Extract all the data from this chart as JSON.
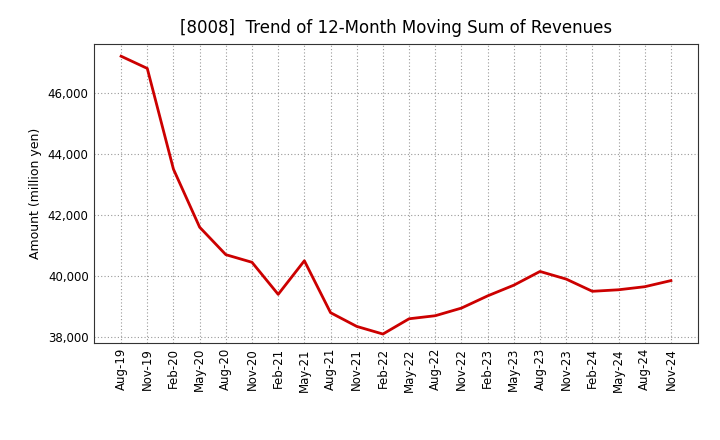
{
  "title": "[8008]  Trend of 12-Month Moving Sum of Revenues",
  "ylabel": "Amount (million yen)",
  "line_color": "#cc0000",
  "background_color": "#ffffff",
  "grid_color": "#999999",
  "ylim": [
    37800,
    47600
  ],
  "yticks": [
    38000,
    40000,
    42000,
    44000,
    46000
  ],
  "x_labels": [
    "Aug-19",
    "Nov-19",
    "Feb-20",
    "May-20",
    "Aug-20",
    "Nov-20",
    "Feb-21",
    "May-21",
    "Aug-21",
    "Nov-21",
    "Feb-22",
    "May-22",
    "Aug-22",
    "Nov-22",
    "Feb-23",
    "May-23",
    "Aug-23",
    "Nov-23",
    "Feb-24",
    "May-24",
    "Aug-24",
    "Nov-24"
  ],
  "data_points": {
    "Aug-19": 47200,
    "Nov-19": 46800,
    "Feb-20": 43500,
    "May-20": 41600,
    "Aug-20": 40700,
    "Nov-20": 40450,
    "Feb-21": 39400,
    "May-21": 40500,
    "Aug-21": 38800,
    "Nov-21": 38350,
    "Feb-22": 38100,
    "May-22": 38600,
    "Aug-22": 38700,
    "Nov-22": 38950,
    "Feb-23": 39350,
    "May-23": 39700,
    "Aug-23": 40150,
    "Nov-23": 39900,
    "Feb-24": 39500,
    "May-24": 39550,
    "Aug-24": 39650,
    "Nov-24": 39850
  },
  "spine_color": "#333333",
  "linewidth": 2.0,
  "title_fontsize": 12,
  "axis_fontsize": 9,
  "tick_fontsize": 8.5
}
